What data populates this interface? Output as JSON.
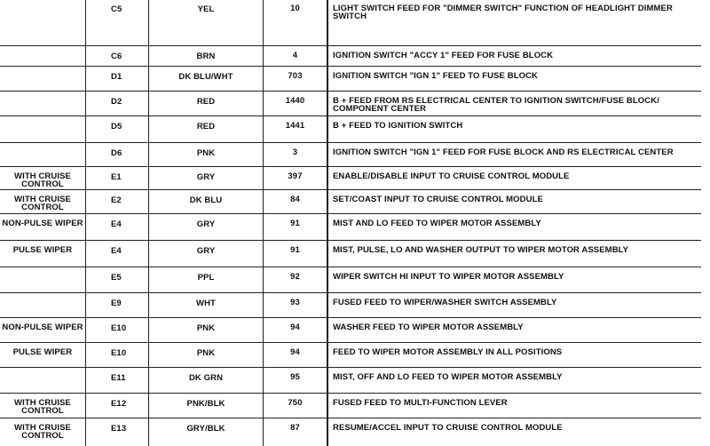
{
  "rows": [
    {
      "condition": "",
      "cavity": "C5",
      "color": "YEL",
      "circuit": "10",
      "function": "LIGHT SWITCH FEED FOR \"DIMMER SWITCH\" FUNCTION OF HEADLIGHT DIMMER SWITCH"
    },
    {
      "condition": "",
      "cavity": "C6",
      "color": "BRN",
      "circuit": "4",
      "function": "IGNITION SWITCH \"ACCY 1\" FEED FOR FUSE BLOCK"
    },
    {
      "condition": "",
      "cavity": "D1",
      "color": "DK BLU/WHT",
      "circuit": "703",
      "function": "IGNITION SWITCH \"IGN 1\" FEED TO FUSE BLOCK"
    },
    {
      "condition": "",
      "cavity": "D2",
      "color": "RED",
      "circuit": "1440",
      "function": "B + FEED FROM RS ELECTRICAL CENTER TO IGNITION SWITCH/FUSE BLOCK/ COMPONENT CENTER"
    },
    {
      "condition": "",
      "cavity": "D5",
      "color": "RED",
      "circuit": "1441",
      "function": "B + FEED TO IGNITION SWITCH"
    },
    {
      "condition": "",
      "cavity": "D6",
      "color": "PNK",
      "circuit": "3",
      "function": "IGNITION SWITCH \"IGN 1\" FEED FOR FUSE BLOCK AND RS ELECTRICAL CENTER"
    },
    {
      "condition": "WITH CRUISE CONTROL",
      "cavity": "E1",
      "color": "GRY",
      "circuit": "397",
      "function": "ENABLE/DISABLE INPUT TO CRUISE CONTROL MODULE"
    },
    {
      "condition": "WITH CRUISE CONTROL",
      "cavity": "E2",
      "color": "DK BLU",
      "circuit": "84",
      "function": "SET/COAST INPUT TO CRUISE CONTROL MODULE"
    },
    {
      "condition": "NON-PULSE WIPER",
      "cavity": "E4",
      "color": "GRY",
      "circuit": "91",
      "function": "MIST AND LO FEED TO WIPER MOTOR ASSEMBLY"
    },
    {
      "condition": "PULSE WIPER",
      "cavity": "E4",
      "color": "GRY",
      "circuit": "91",
      "function": "MIST, PULSE, LO AND WASHER OUTPUT TO WIPER MOTOR ASSEMBLY"
    },
    {
      "condition": "",
      "cavity": "E5",
      "color": "PPL",
      "circuit": "92",
      "function": "WIPER SWITCH HI INPUT  TO WIPER MOTOR ASSEMBLY"
    },
    {
      "condition": "",
      "cavity": "E9",
      "color": "WHT",
      "circuit": "93",
      "function": "FUSED FEED TO WIPER/WASHER SWITCH ASSEMBLY"
    },
    {
      "condition": "NON-PULSE WIPER",
      "cavity": "E10",
      "color": "PNK",
      "circuit": "94",
      "function": "WASHER FEED TO WIPER MOTOR ASSEMBLY"
    },
    {
      "condition": "PULSE WIPER",
      "cavity": "E10",
      "color": "PNK",
      "circuit": "94",
      "function": "FEED TO WIPER MOTOR ASSEMBLY IN ALL POSITIONS"
    },
    {
      "condition": "",
      "cavity": "E11",
      "color": "DK GRN",
      "circuit": "95",
      "function": "MIST, OFF AND LO FEED TO WIPER MOTOR ASSEMBLY"
    },
    {
      "condition": "WITH CRUISE CONTROL",
      "cavity": "E12",
      "color": "PNK/BLK",
      "circuit": "750",
      "function": "FUSED FEED TO MULTI-FUNCTION LEVER"
    },
    {
      "condition": "WITH CRUISE CONTROL",
      "cavity": "E13",
      "color": "GRY/BLK",
      "circuit": "87",
      "function": "RESUME/ACCEL INPUT TO CRUISE CONTROL MODULE"
    }
  ]
}
